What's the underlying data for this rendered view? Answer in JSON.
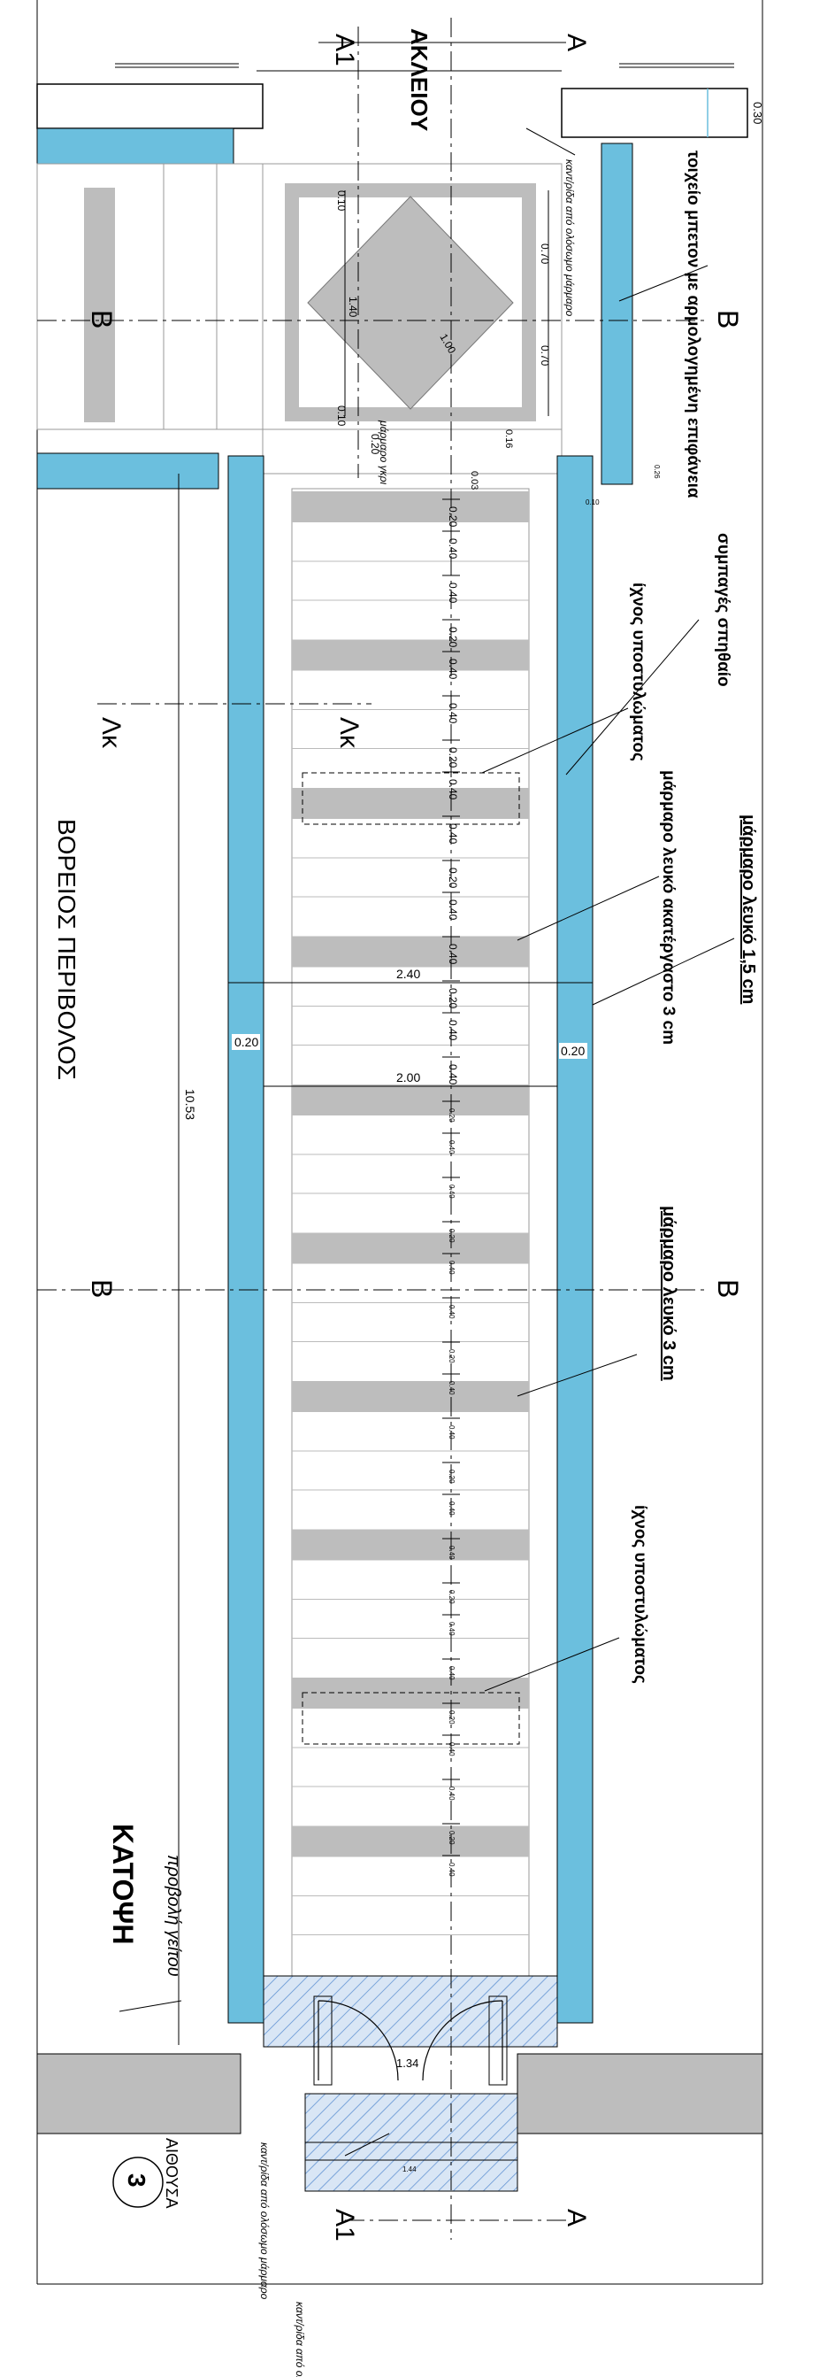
{
  "labels": {
    "street": "ΑΚΛΕΙΟΥ",
    "north_enclosure": "ΒΟΡΕΙΟΣ ΠΕΡΙΒΟΛΟΣ",
    "plan_title": "ΚΑΤΟΨΗ",
    "neighbor": "προβολή γείτου",
    "hall": "ΑΙΘΟΥΣΑ",
    "drawing_number": "3"
  },
  "sections": {
    "A1_top": "A1",
    "A_top": "A",
    "B_left": "B",
    "B_right": "B",
    "B_mid_left": "B",
    "B_mid_right": "B",
    "A1_bottom": "A1",
    "A_bottom": "A",
    "lk_left": "Λκ",
    "lk_right": "Λκ"
  },
  "annotations": {
    "concrete_wall": "τοιχείο μπετον με αρμολογημένη επιφάνεια",
    "solid_brick": "συμπαγές σπηθαίο",
    "column_trace_1": "ίχνος υποστυλώματος",
    "marble_white_unpolished": "μάρμαρο λευκό ακατέργαστο 3 cm",
    "marble_white_15": "μάρμαρο λευκό 1,5 cm",
    "marble_white_3": "μάρμαρο λευκό 3 cm",
    "column_trace_2": "ίχνος υποστυλώματος",
    "small_top": "καντ/ρίδα από ολόσωμο μάρμαρο",
    "small_mid": "μάρμαρο γκρι",
    "small_bottom_a": "καντ/ρίδα από ολόσωμο μάρμαρο",
    "small_bottom_b": "καντ/ρίδα από ολόσωμο μάρμαρο"
  },
  "dims": {
    "d030": "0.30",
    "d010": "0.10",
    "d070a": "0.70",
    "d140": "1.40",
    "d100": "1.00",
    "d070b": "0.70",
    "d010b": "0.10",
    "d020top": "0.20",
    "d016": "0.16",
    "d003": "0.03",
    "d026": "0.26",
    "d010c": "0.10",
    "wall_left": "0.20",
    "wall_right": "0.20",
    "width_outer": "2.40",
    "width_inner": "2.00",
    "length_total": "10.53",
    "door_width": "1.34",
    "door_width2": "1.44",
    "steps": [
      "0.20",
      "0.40",
      "0.40",
      "0.20",
      "0.40",
      "0.40",
      "0.20",
      "0.40",
      "0.40",
      "0.20",
      "0.40",
      "0.40",
      "0.20",
      "0.40",
      "0.40",
      "0.20",
      "0.40",
      "0.40",
      "0.20",
      "0.40",
      "0.40",
      "0.20",
      "0.40",
      "0.40",
      "0.20",
      "0.40",
      "0.40",
      "0.20",
      "0.40",
      "0.40",
      "0.20",
      "0.40",
      "0.40",
      "0.20",
      "0.40"
    ]
  }
}
